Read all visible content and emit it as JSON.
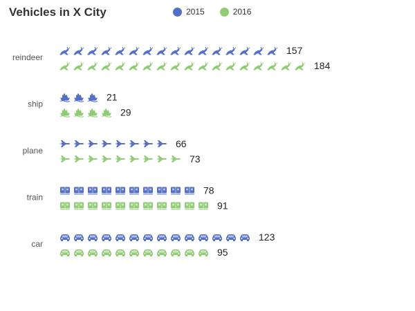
{
  "chart_data": {
    "type": "pictorial-bar",
    "title": "Vehicles in X City",
    "categories": [
      "reindeer",
      "ship",
      "plane",
      "train",
      "car"
    ],
    "series": [
      {
        "name": "2015",
        "color": "#5470c6",
        "values": [
          157,
          21,
          66,
          78,
          123
        ]
      },
      {
        "name": "2016",
        "color": "#91cc75",
        "values": [
          184,
          29,
          73,
          91,
          95
        ]
      }
    ],
    "symbols": {
      "reindeer": "reindeer-icon",
      "ship": "ship-icon",
      "plane": "plane-icon",
      "train": "train-icon",
      "car": "car-icon"
    },
    "legend_placement": "top-center",
    "grid": false
  }
}
